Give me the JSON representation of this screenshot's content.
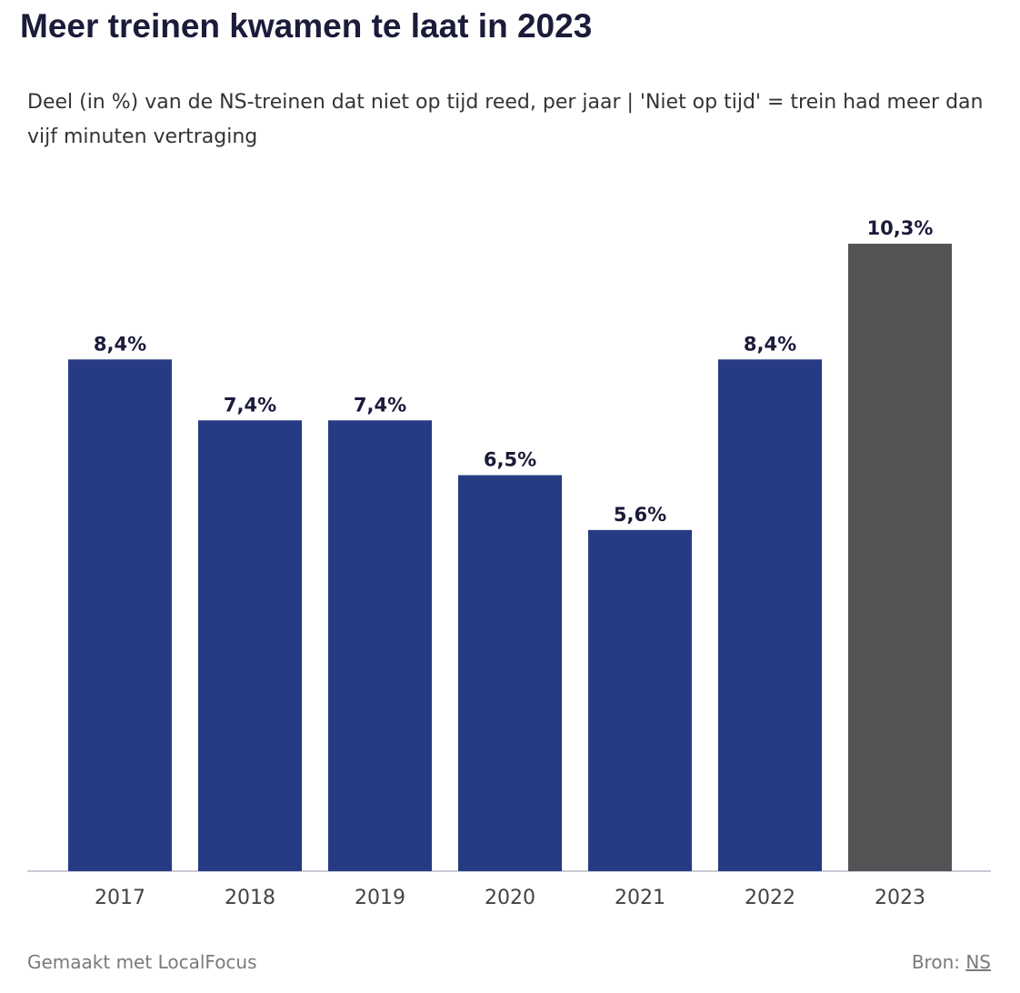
{
  "chart_data": {
    "type": "bar",
    "title": "Meer treinen kwamen te laat in 2023",
    "subtitle": "Deel (in %) van de NS-treinen dat niet op tijd reed, per jaar | 'Niet op tijd' = trein had meer dan vijf minuten vertraging",
    "categories": [
      "2017",
      "2018",
      "2019",
      "2020",
      "2021",
      "2022",
      "2023"
    ],
    "values": [
      8.4,
      7.4,
      7.4,
      6.5,
      5.6,
      8.4,
      10.3
    ],
    "value_labels": [
      "8,4%",
      "7,4%",
      "7,4%",
      "6,5%",
      "5,6%",
      "8,4%",
      "10,3%"
    ],
    "colors": [
      "#273a84",
      "#273a84",
      "#273a84",
      "#273a84",
      "#273a84",
      "#273a84",
      "#545456"
    ],
    "footer": "Gemaakt met LocalFocus",
    "source_label": "Bron:",
    "source": "NS"
  }
}
